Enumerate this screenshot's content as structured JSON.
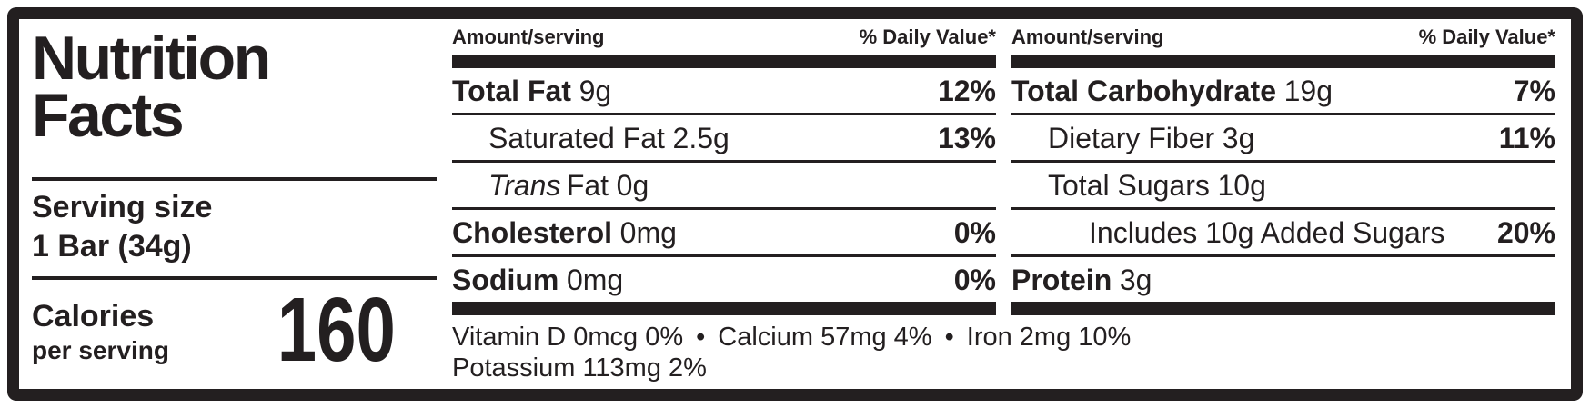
{
  "label": {
    "title_line1": "Nutrition",
    "title_line2": "Facts",
    "serving": {
      "label": "Serving size",
      "value": "1 Bar (34g)"
    },
    "calories": {
      "label": "Calories",
      "sublabel": "per serving",
      "value": "160"
    }
  },
  "columns": [
    {
      "header": {
        "amount": "Amount/serving",
        "dv": "% Daily Value*"
      },
      "rows": [
        {
          "name": "Total Fat",
          "amount": "9g",
          "dv": "12%"
        },
        {
          "name": "Saturated Fat",
          "amount": "2.5g",
          "dv": "13%"
        },
        {
          "name_italic": "Trans",
          "name": "Fat",
          "amount": "0g"
        },
        {
          "name": "Cholesterol",
          "amount": "0mg",
          "dv": "0%"
        },
        {
          "name": "Sodium",
          "amount": "0mg",
          "dv": "0%"
        }
      ]
    },
    {
      "header": {
        "amount": "Amount/serving",
        "dv": "% Daily Value*"
      },
      "rows": [
        {
          "name": "Total Carbohydrate",
          "amount": "19g",
          "dv": "7%"
        },
        {
          "name": "Dietary Fiber",
          "amount": "3g",
          "dv": "11%"
        },
        {
          "name": "Total Sugars",
          "amount": "10g"
        },
        {
          "name": "Includes 10g Added Sugars",
          "dv": "20%"
        },
        {
          "name": "Protein",
          "amount": "3g"
        }
      ]
    }
  ],
  "micronutrients": {
    "bullet": "•",
    "items": [
      "Vitamin D 0mcg 0%",
      "Calcium 57mg 4%",
      "Iron 2mg 10%"
    ],
    "line2": "Potassium 113mg 2%"
  },
  "colors": {
    "ink": "#231f20",
    "background": "#ffffff"
  }
}
